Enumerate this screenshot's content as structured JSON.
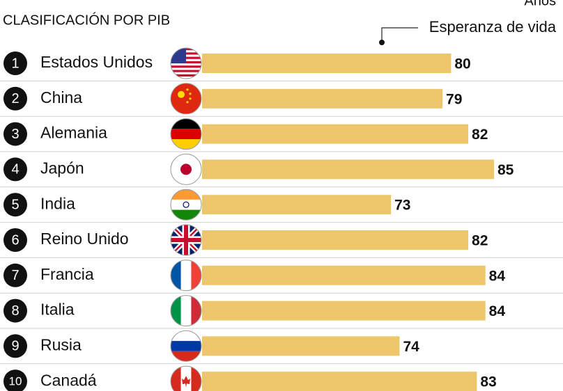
{
  "chart_data": {
    "type": "bar",
    "orientation": "horizontal",
    "title": "CLASIFICACIÓN POR PIB",
    "unit_label": "Años",
    "legend_label": "Esperanza de vida",
    "ranks": [
      "1",
      "2",
      "3",
      "4",
      "5",
      "6",
      "7",
      "8",
      "9",
      "10"
    ],
    "categories": [
      "Estados Unidos",
      "China",
      "Alemania",
      "Japón",
      "India",
      "Reino Unido",
      "Francia",
      "Italia",
      "Rusia",
      "Canadá"
    ],
    "values": [
      80,
      79,
      82,
      85,
      73,
      82,
      84,
      84,
      74,
      83
    ],
    "color": "#edc56b",
    "xlim": [
      51,
      85
    ]
  }
}
